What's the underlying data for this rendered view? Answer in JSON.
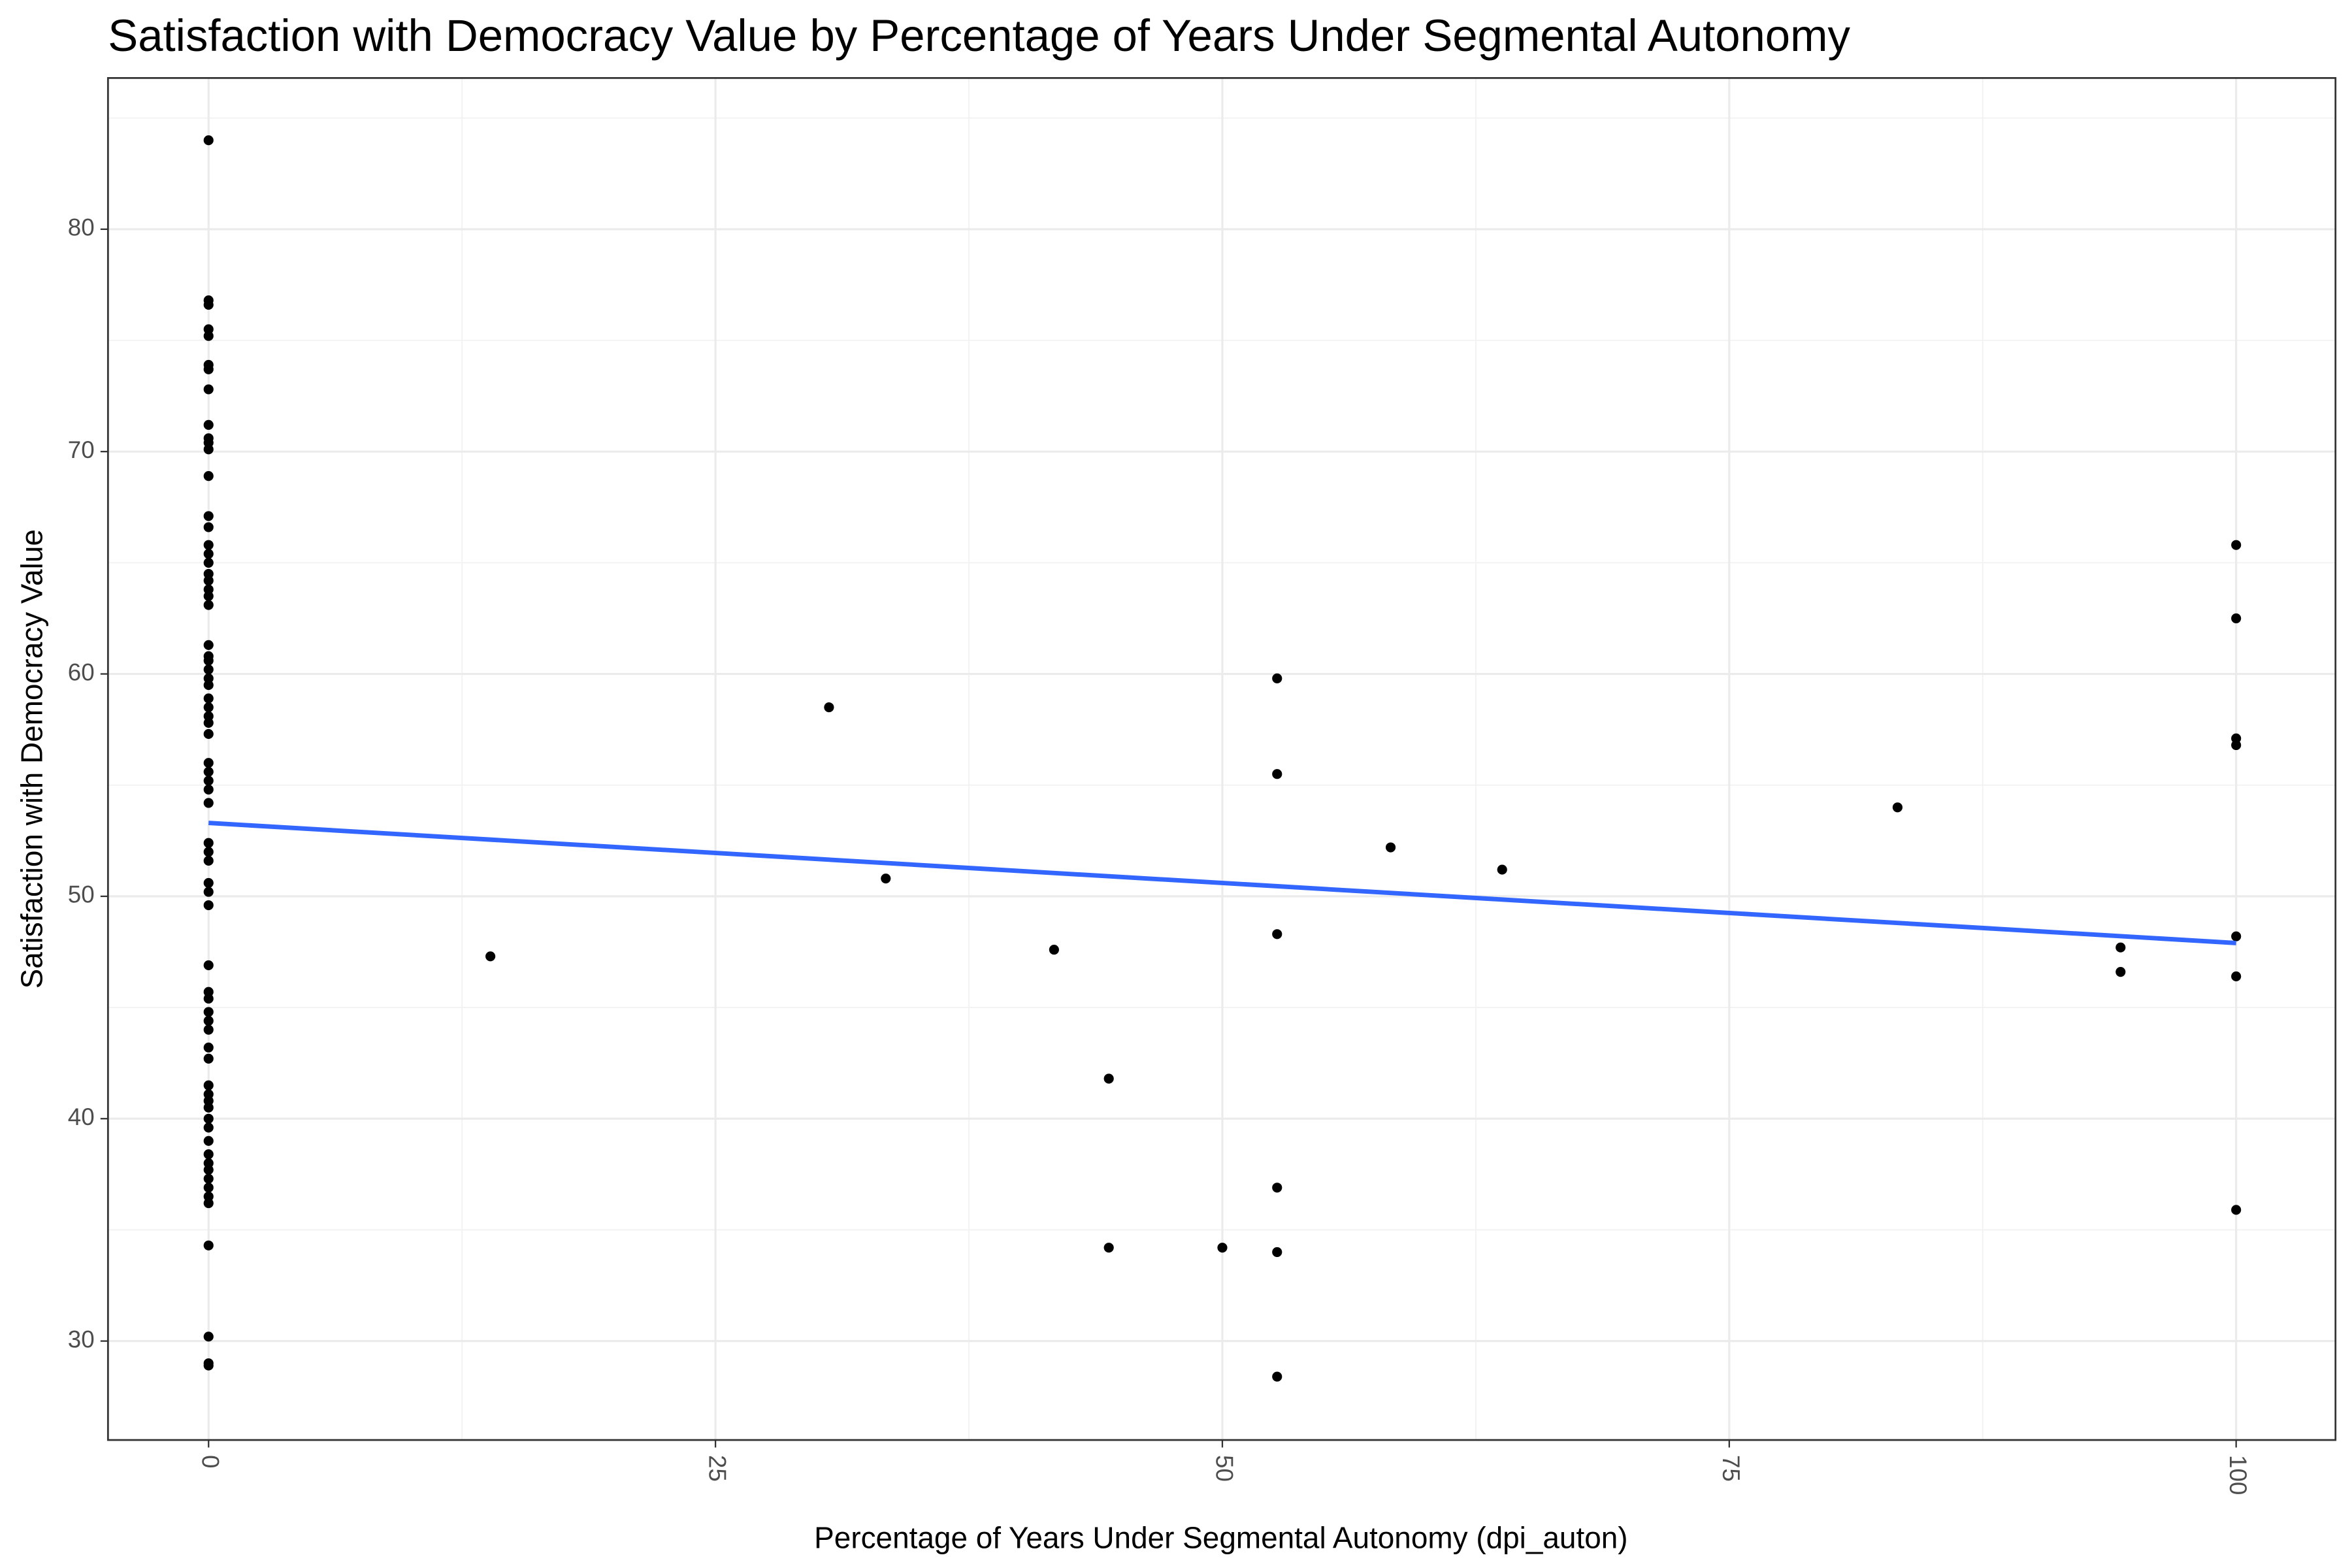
{
  "chart_data": {
    "type": "scatter",
    "title": "Satisfaction with Democracy Value by Percentage of Years Under Segmental Autonomy",
    "x_label": "Percentage of Years Under Segmental Autonomy (dpi_auton)",
    "y_label": "Satisfaction with Democracy Value",
    "xlim": [
      -4.96,
      104.9
    ],
    "ylim": [
      25.55,
      86.8
    ],
    "xticks": [
      0,
      25,
      50,
      75,
      100
    ],
    "yticks": [
      30,
      40,
      50,
      60,
      70,
      80
    ],
    "x_minor_ticks": [
      12.5,
      37.5,
      62.5,
      87.5
    ],
    "y_minor_ticks": [
      35,
      45,
      55,
      65,
      75,
      85
    ],
    "grid": true,
    "point_color": "#000000",
    "x": [
      0,
      0,
      0,
      0,
      0,
      0,
      0,
      0,
      0,
      0,
      0,
      0,
      0,
      0,
      0,
      0,
      0,
      0,
      0,
      0,
      0,
      0,
      0,
      0,
      0,
      0,
      0,
      0,
      0,
      0,
      0,
      0,
      0,
      0,
      0,
      0,
      0,
      0,
      0,
      0,
      0,
      0,
      0,
      0,
      0,
      0,
      0,
      0,
      0,
      0,
      0,
      0,
      0,
      0,
      0,
      0,
      0,
      0,
      0,
      0,
      0,
      0,
      0,
      0,
      0,
      0,
      0,
      0,
      0,
      0,
      0,
      13.9,
      30.6,
      33.4,
      41.7,
      44.4,
      44.4,
      50.0,
      52.7,
      52.7,
      52.7,
      52.7,
      52.7,
      52.7,
      58.3,
      63.8,
      83.3,
      94.3,
      94.3,
      100,
      100,
      100,
      100,
      100,
      100,
      100
    ],
    "values": [
      84.0,
      76.8,
      76.6,
      75.5,
      75.2,
      73.9,
      73.7,
      72.8,
      71.2,
      70.6,
      70.4,
      70.1,
      68.9,
      67.1,
      66.6,
      65.8,
      65.4,
      65.0,
      64.5,
      64.2,
      63.8,
      63.5,
      63.1,
      61.3,
      60.8,
      60.6,
      60.2,
      59.8,
      59.5,
      58.9,
      58.5,
      58.1,
      57.8,
      57.3,
      56.0,
      55.6,
      55.2,
      54.8,
      54.2,
      52.4,
      52.0,
      51.6,
      50.6,
      50.2,
      49.6,
      46.9,
      45.7,
      45.4,
      44.8,
      44.4,
      44.0,
      43.2,
      42.7,
      41.5,
      41.1,
      40.8,
      40.5,
      40.0,
      39.6,
      39.0,
      38.4,
      38.0,
      37.7,
      37.3,
      36.9,
      36.5,
      36.2,
      34.3,
      30.2,
      29.0,
      28.9,
      47.3,
      58.5,
      50.8,
      47.6,
      41.8,
      34.2,
      34.2,
      59.8,
      55.5,
      48.3,
      36.9,
      34.0,
      28.4,
      52.2,
      51.2,
      54.0,
      47.7,
      46.6,
      65.8,
      62.5,
      57.1,
      56.8,
      48.2,
      46.4,
      35.9
    ],
    "trend_line": {
      "x": [
        0,
        100
      ],
      "values": [
        53.3,
        47.9
      ],
      "color": "#3366ff"
    }
  }
}
